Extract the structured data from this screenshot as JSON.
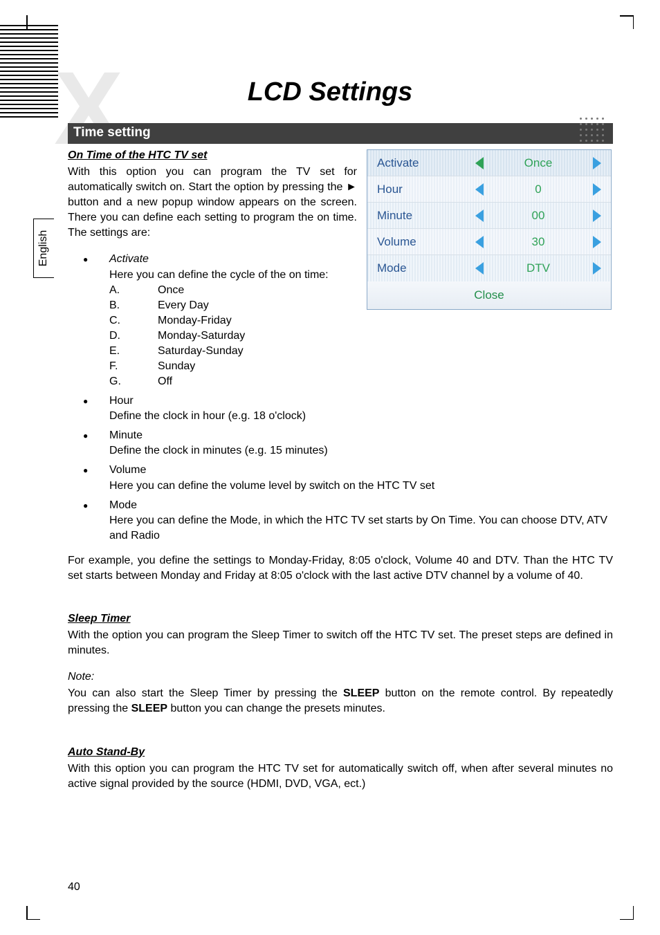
{
  "page": {
    "title": "LCD Settings",
    "section_bar": "Time setting",
    "lang_tab": "English",
    "page_number": "40"
  },
  "on_time": {
    "heading": "On Time of the HTC TV set",
    "paragraph": "With this option you can program the TV set for automatically switch on. Start the option by pressing the ► button and a new popup window appears on the screen. There you can define each setting to program the on time. The settings are:"
  },
  "activate": {
    "label": "Activate",
    "intro": "Here you can define the cycle of the on time:",
    "items": [
      {
        "letter": "A.",
        "text": "Once"
      },
      {
        "letter": "B.",
        "text": "Every Day"
      },
      {
        "letter": "C.",
        "text": "Monday-Friday"
      },
      {
        "letter": "D.",
        "text": "Monday-Saturday"
      },
      {
        "letter": "E.",
        "text": "Saturday-Sunday"
      },
      {
        "letter": "F.",
        "text": "Sunday"
      },
      {
        "letter": "G.",
        "text": "Off"
      }
    ]
  },
  "bullets2": [
    {
      "title": "Hour",
      "desc": "Define the clock in hour (e.g. 18 o'clock)"
    },
    {
      "title": "Minute",
      "desc": "Define the clock in minutes (e.g. 15 minutes)"
    },
    {
      "title": "Volume",
      "desc": "Here you can define the volume level by switch on the HTC TV set"
    },
    {
      "title": "Mode",
      "desc": "Here you can define the Mode, in which the HTC TV set starts by On Time. You can choose DTV, ATV and Radio"
    }
  ],
  "example_para": "For example, you define the settings to Monday-Friday, 8:05 o'clock, Volume 40 and DTV. Than the HTC TV set starts between Monday and Friday at 8:05 o'clock with the last active DTV channel by a volume of 40.",
  "sleep": {
    "heading": "Sleep Timer",
    "para": "With the option you can program the Sleep Timer to switch off the HTC TV set. The preset steps are defined in minutes.",
    "note_label": "Note:",
    "note_para_pre": "You can also start the Sleep Timer by pressing the ",
    "sleep_word": "SLEEP",
    "note_para_mid": " button on the remote control. By repeatedly pressing the ",
    "note_para_post": " button you can change the presets minutes."
  },
  "standby": {
    "heading": "Auto Stand-By",
    "para": "With this option you can program the HTC TV set for automatically switch off, when after several minutes no active signal provided by the source (HDMI, DVD, VGA, ect.)"
  },
  "osd": {
    "rows": [
      {
        "label": "Activate",
        "value": "Once",
        "label_color": "#2a5693",
        "value_color": "#2fa257",
        "left_arrow_color": "#2fa257",
        "right_arrow_color": "#3aa0e0",
        "stripe": "stripe-hl"
      },
      {
        "label": "Hour",
        "value": "0",
        "label_color": "#2a5693",
        "value_color": "#2fa257",
        "left_arrow_color": "#3aa0e0",
        "right_arrow_color": "#3aa0e0",
        "stripe": "stripe-a"
      },
      {
        "label": "Minute",
        "value": "00",
        "label_color": "#2a5693",
        "value_color": "#2fa257",
        "left_arrow_color": "#3aa0e0",
        "right_arrow_color": "#3aa0e0",
        "stripe": "stripe-a2"
      },
      {
        "label": "Volume",
        "value": "30",
        "label_color": "#2a5693",
        "value_color": "#2fa257",
        "left_arrow_color": "#3aa0e0",
        "right_arrow_color": "#3aa0e0",
        "stripe": "stripe-a"
      },
      {
        "label": "Mode",
        "value": "DTV",
        "label_color": "#2a5693",
        "value_color": "#2fa257",
        "left_arrow_color": "#3aa0e0",
        "right_arrow_color": "#3aa0e0",
        "stripe": "stripe-a2"
      }
    ],
    "close_label": "Close"
  }
}
